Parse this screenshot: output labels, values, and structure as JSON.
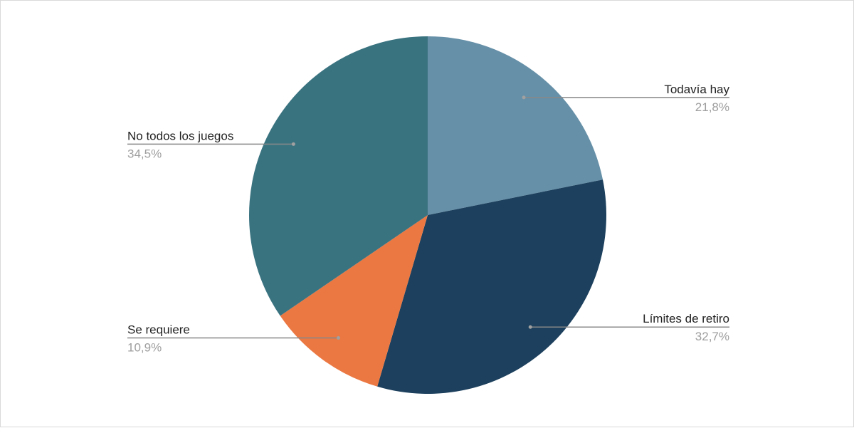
{
  "chart_data": {
    "type": "pie",
    "title": "",
    "slices": [
      {
        "label": "Todavía hay",
        "value": 21.8,
        "display": "21,8%",
        "color": "#6690a8",
        "side": "right"
      },
      {
        "label": "Límites de retiro",
        "value": 32.7,
        "display": "32,7%",
        "color": "#1c405d",
        "side": "right"
      },
      {
        "label": "Se requiere",
        "value": 10.9,
        "display": "10,9%",
        "color": "#eb7842",
        "side": "left"
      },
      {
        "label": "No todos los juegos",
        "value": 34.5,
        "display": "34,5%",
        "color": "#3a7380",
        "side": "left"
      }
    ],
    "start_angle": "12 o'clock",
    "direction": "clockwise",
    "legend": "none",
    "label_style": "leader lines with name and percentage"
  }
}
